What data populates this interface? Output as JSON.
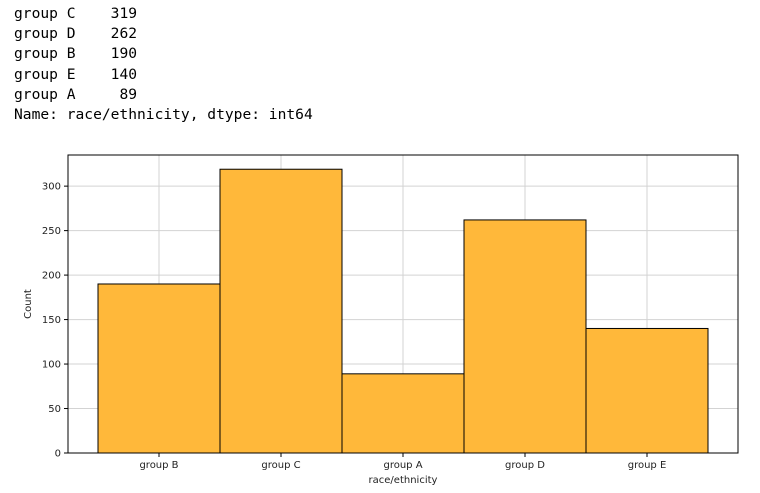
{
  "console_output": {
    "rows": [
      {
        "label": "group C",
        "count": "319"
      },
      {
        "label": "group D",
        "count": "262"
      },
      {
        "label": "group B",
        "count": "190"
      },
      {
        "label": "group E",
        "count": "140"
      },
      {
        "label": "group A",
        "count": "89"
      }
    ],
    "footer": "Name: race/ethnicity, dtype: int64"
  },
  "chart_data": {
    "type": "bar",
    "categories": [
      "group B",
      "group C",
      "group A",
      "group D",
      "group E"
    ],
    "values": [
      190,
      319,
      89,
      262,
      140
    ],
    "title": "",
    "xlabel": "race/ethnicity",
    "ylabel": "Count",
    "ylim": [
      0,
      335
    ],
    "yticks": [
      0,
      50,
      100,
      150,
      200,
      250,
      300
    ],
    "grid": true,
    "bar_color": "#ffb83a",
    "edge_color": "#000000",
    "grid_color": "#d3d3d3"
  }
}
